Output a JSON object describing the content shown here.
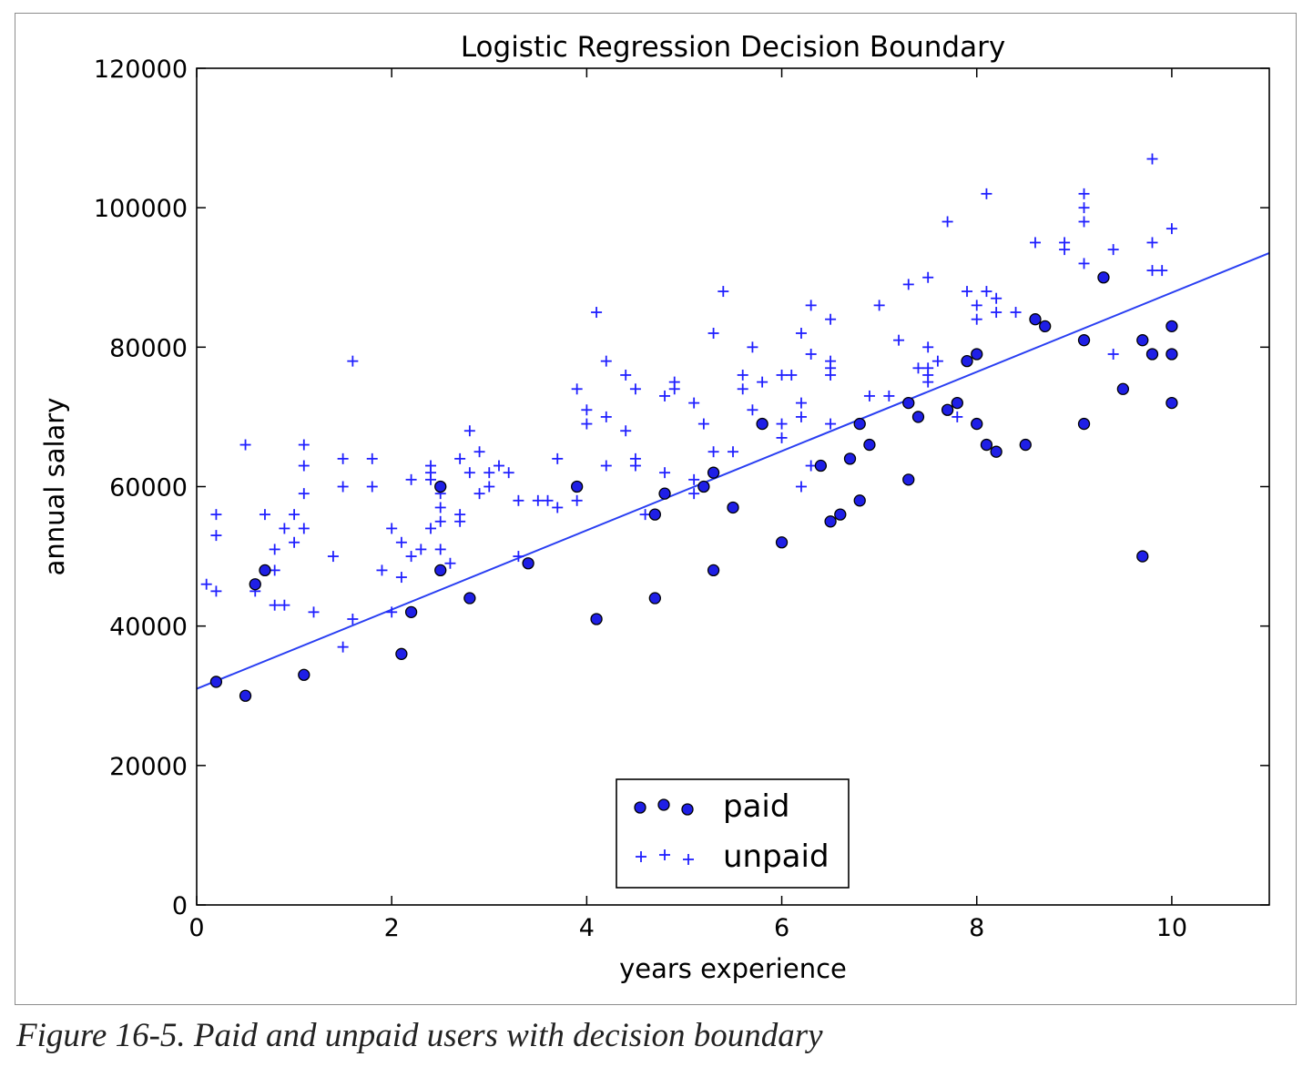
{
  "caption": "Figure 16-5. Paid and unpaid users with decision boundary",
  "chart_data": {
    "type": "scatter",
    "title": "Logistic Regression Decision Boundary",
    "xlabel": "years experience",
    "ylabel": "annual salary",
    "xlim": [
      0,
      11
    ],
    "ylim": [
      0,
      120000
    ],
    "xticks": [
      "0",
      "2",
      "4",
      "6",
      "8",
      "10"
    ],
    "yticks": [
      "0",
      "20000",
      "40000",
      "60000",
      "80000",
      "100000",
      "120000"
    ],
    "grid": false,
    "legend_position": "bottom-center",
    "colors": {
      "paid_fill": "#1f1fe6",
      "paid_edge": "#000000",
      "unpaid": "#2020ff",
      "boundary": "#2a3ff2"
    },
    "series": [
      {
        "name": "paid",
        "marker": "circle",
        "points": [
          [
            0.2,
            32000
          ],
          [
            0.5,
            30000
          ],
          [
            0.6,
            46000
          ],
          [
            0.7,
            48000
          ],
          [
            1.1,
            33000
          ],
          [
            2.1,
            36000
          ],
          [
            2.2,
            42000
          ],
          [
            2.5,
            60000
          ],
          [
            2.5,
            48000
          ],
          [
            2.8,
            44000
          ],
          [
            3.4,
            49000
          ],
          [
            3.9,
            60000
          ],
          [
            4.1,
            41000
          ],
          [
            4.7,
            56000
          ],
          [
            4.7,
            44000
          ],
          [
            4.8,
            59000
          ],
          [
            5.2,
            60000
          ],
          [
            5.3,
            62000
          ],
          [
            5.3,
            48000
          ],
          [
            5.5,
            57000
          ],
          [
            5.8,
            69000
          ],
          [
            6.0,
            52000
          ],
          [
            6.4,
            63000
          ],
          [
            6.5,
            55000
          ],
          [
            6.6,
            56000
          ],
          [
            6.7,
            64000
          ],
          [
            6.8,
            69000
          ],
          [
            6.8,
            58000
          ],
          [
            6.9,
            66000
          ],
          [
            7.3,
            72000
          ],
          [
            7.3,
            61000
          ],
          [
            7.4,
            70000
          ],
          [
            7.7,
            71000
          ],
          [
            7.8,
            72000
          ],
          [
            7.9,
            78000
          ],
          [
            8.0,
            79000
          ],
          [
            8.0,
            69000
          ],
          [
            8.1,
            66000
          ],
          [
            8.2,
            65000
          ],
          [
            8.5,
            66000
          ],
          [
            8.6,
            84000
          ],
          [
            8.7,
            83000
          ],
          [
            9.1,
            81000
          ],
          [
            9.1,
            69000
          ],
          [
            9.3,
            90000
          ],
          [
            9.5,
            74000
          ],
          [
            9.7,
            81000
          ],
          [
            9.7,
            50000
          ],
          [
            9.8,
            79000
          ],
          [
            10.0,
            83000
          ],
          [
            10.0,
            79000
          ],
          [
            10.0,
            72000
          ]
        ]
      },
      {
        "name": "unpaid",
        "marker": "plus",
        "points": [
          [
            0.1,
            46000
          ],
          [
            0.2,
            56000
          ],
          [
            0.2,
            53000
          ],
          [
            0.2,
            45000
          ],
          [
            0.5,
            66000
          ],
          [
            0.6,
            45000
          ],
          [
            0.7,
            56000
          ],
          [
            0.8,
            51000
          ],
          [
            0.8,
            48000
          ],
          [
            0.8,
            43000
          ],
          [
            0.9,
            54000
          ],
          [
            0.9,
            43000
          ],
          [
            1.0,
            56000
          ],
          [
            1.0,
            52000
          ],
          [
            1.1,
            66000
          ],
          [
            1.1,
            63000
          ],
          [
            1.1,
            59000
          ],
          [
            1.1,
            54000
          ],
          [
            1.2,
            42000
          ],
          [
            1.4,
            50000
          ],
          [
            1.5,
            64000
          ],
          [
            1.5,
            60000
          ],
          [
            1.5,
            37000
          ],
          [
            1.6,
            78000
          ],
          [
            1.6,
            41000
          ],
          [
            1.8,
            64000
          ],
          [
            1.8,
            60000
          ],
          [
            1.9,
            48000
          ],
          [
            2.0,
            54000
          ],
          [
            2.0,
            42000
          ],
          [
            2.1,
            52000
          ],
          [
            2.1,
            47000
          ],
          [
            2.2,
            61000
          ],
          [
            2.2,
            50000
          ],
          [
            2.3,
            51000
          ],
          [
            2.4,
            63000
          ],
          [
            2.4,
            62000
          ],
          [
            2.4,
            61000
          ],
          [
            2.4,
            54000
          ],
          [
            2.5,
            59000
          ],
          [
            2.5,
            57000
          ],
          [
            2.5,
            55000
          ],
          [
            2.5,
            51000
          ],
          [
            2.6,
            49000
          ],
          [
            2.7,
            64000
          ],
          [
            2.7,
            56000
          ],
          [
            2.7,
            55000
          ],
          [
            2.8,
            68000
          ],
          [
            2.8,
            62000
          ],
          [
            2.9,
            65000
          ],
          [
            2.9,
            59000
          ],
          [
            3.0,
            62000
          ],
          [
            3.0,
            60000
          ],
          [
            3.1,
            63000
          ],
          [
            3.2,
            62000
          ],
          [
            3.3,
            58000
          ],
          [
            3.3,
            50000
          ],
          [
            3.5,
            58000
          ],
          [
            3.6,
            58000
          ],
          [
            3.7,
            64000
          ],
          [
            3.7,
            57000
          ],
          [
            3.9,
            74000
          ],
          [
            3.9,
            58000
          ],
          [
            4.0,
            71000
          ],
          [
            4.0,
            69000
          ],
          [
            4.1,
            85000
          ],
          [
            4.2,
            78000
          ],
          [
            4.2,
            70000
          ],
          [
            4.2,
            63000
          ],
          [
            4.4,
            76000
          ],
          [
            4.4,
            68000
          ],
          [
            4.5,
            74000
          ],
          [
            4.5,
            64000
          ],
          [
            4.5,
            63000
          ],
          [
            4.6,
            56000
          ],
          [
            4.8,
            73000
          ],
          [
            4.8,
            62000
          ],
          [
            4.9,
            75000
          ],
          [
            4.9,
            74000
          ],
          [
            5.1,
            72000
          ],
          [
            5.1,
            61000
          ],
          [
            5.1,
            59000
          ],
          [
            5.2,
            69000
          ],
          [
            5.3,
            82000
          ],
          [
            5.3,
            65000
          ],
          [
            5.4,
            88000
          ],
          [
            5.5,
            65000
          ],
          [
            5.6,
            76000
          ],
          [
            5.6,
            74000
          ],
          [
            5.7,
            80000
          ],
          [
            5.7,
            71000
          ],
          [
            5.8,
            75000
          ],
          [
            6.0,
            76000
          ],
          [
            6.0,
            69000
          ],
          [
            6.0,
            67000
          ],
          [
            6.1,
            76000
          ],
          [
            6.2,
            82000
          ],
          [
            6.2,
            72000
          ],
          [
            6.2,
            70000
          ],
          [
            6.2,
            60000
          ],
          [
            6.3,
            86000
          ],
          [
            6.3,
            79000
          ],
          [
            6.3,
            63000
          ],
          [
            6.5,
            84000
          ],
          [
            6.5,
            78000
          ],
          [
            6.5,
            77000
          ],
          [
            6.5,
            76000
          ],
          [
            6.5,
            69000
          ],
          [
            6.9,
            73000
          ],
          [
            7.0,
            86000
          ],
          [
            7.1,
            73000
          ],
          [
            7.2,
            81000
          ],
          [
            7.3,
            89000
          ],
          [
            7.4,
            77000
          ],
          [
            7.5,
            90000
          ],
          [
            7.5,
            80000
          ],
          [
            7.5,
            77000
          ],
          [
            7.5,
            76000
          ],
          [
            7.5,
            75000
          ],
          [
            7.6,
            78000
          ],
          [
            7.7,
            98000
          ],
          [
            7.8,
            70000
          ],
          [
            7.9,
            88000
          ],
          [
            8.0,
            86000
          ],
          [
            8.0,
            84000
          ],
          [
            8.1,
            102000
          ],
          [
            8.1,
            88000
          ],
          [
            8.2,
            87000
          ],
          [
            8.2,
            85000
          ],
          [
            8.4,
            85000
          ],
          [
            8.6,
            95000
          ],
          [
            8.9,
            95000
          ],
          [
            8.9,
            94000
          ],
          [
            9.1,
            102000
          ],
          [
            9.1,
            100000
          ],
          [
            9.1,
            98000
          ],
          [
            9.1,
            92000
          ],
          [
            9.4,
            94000
          ],
          [
            9.4,
            79000
          ],
          [
            9.8,
            107000
          ],
          [
            9.8,
            95000
          ],
          [
            9.8,
            91000
          ],
          [
            9.9,
            91000
          ],
          [
            10.0,
            97000
          ]
        ]
      }
    ],
    "boundary_line": {
      "x": [
        0,
        11
      ],
      "y": [
        31000,
        93500
      ]
    }
  }
}
